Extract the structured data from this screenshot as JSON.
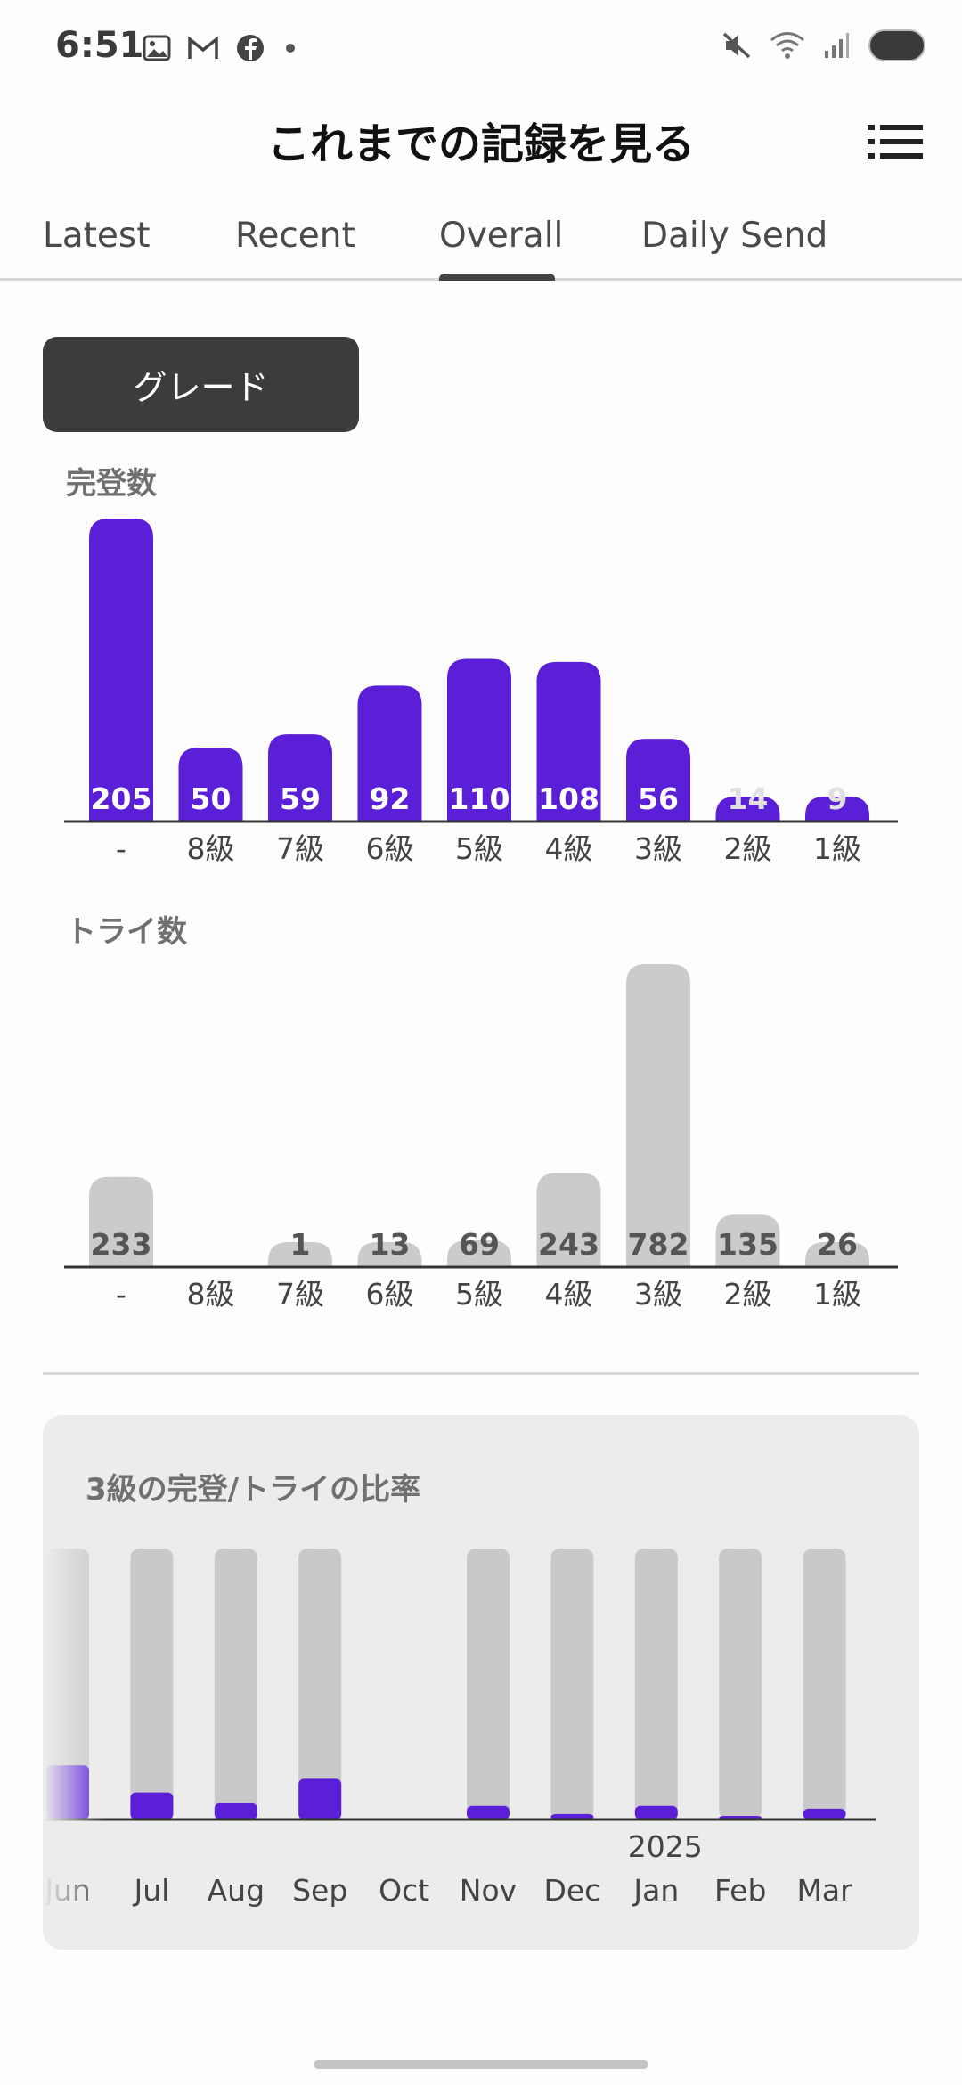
{
  "status_bar": {
    "time": "6:51",
    "left_icons": [
      "image-icon",
      "gmail-icon",
      "facebook-icon",
      "dot-icon"
    ],
    "right_icons": [
      "mute-icon",
      "wifi-icon",
      "signal-icon",
      "battery-icon"
    ]
  },
  "header": {
    "title": "これまでの記録を見る",
    "menu_icon": "list-icon"
  },
  "tabs": [
    {
      "label": "Latest",
      "active": false
    },
    {
      "label": "Recent",
      "active": false
    },
    {
      "label": "Overall",
      "active": true
    },
    {
      "label": "Daily Send",
      "active": false
    }
  ],
  "grade_button": {
    "label": "グレード"
  },
  "colors": {
    "primary": "#5a1fd6",
    "grey_bar": "#cbcbcb",
    "axis": "#333333"
  },
  "chart_data": [
    {
      "type": "bar",
      "title": "完登数",
      "categories": [
        "-",
        "8級",
        "7級",
        "6級",
        "5級",
        "4級",
        "3級",
        "2級",
        "1級"
      ],
      "values": [
        205,
        50,
        59,
        92,
        110,
        108,
        56,
        14,
        9
      ],
      "data_labels": [
        "205",
        "50",
        "59",
        "92",
        "110",
        "108",
        "56",
        "14",
        "9"
      ],
      "color": "#5a1fd6"
    },
    {
      "type": "bar",
      "title": "トライ数",
      "categories": [
        "-",
        "8級",
        "7級",
        "6級",
        "5級",
        "4級",
        "3級",
        "2級",
        "1級"
      ],
      "values": [
        233,
        0,
        1,
        13,
        69,
        243,
        782,
        135,
        26
      ],
      "data_labels": [
        "233",
        "",
        "1",
        "13",
        "69",
        "243",
        "782",
        "135",
        "26"
      ],
      "color": "#cbcbcb"
    },
    {
      "type": "bar",
      "title": "3級の完登/トライの比率",
      "categories": [
        "Jun",
        "Jul",
        "Aug",
        "Sep",
        "Oct",
        "Nov",
        "Dec",
        "Jan",
        "Feb",
        "Mar"
      ],
      "year_label": "2025",
      "ratio": [
        0.2,
        0.1,
        0.06,
        0.15,
        null,
        0.05,
        0.02,
        0.05,
        0.01,
        0.04
      ],
      "color": "#5a1fd6",
      "track_color": "#c9c9c9"
    }
  ]
}
